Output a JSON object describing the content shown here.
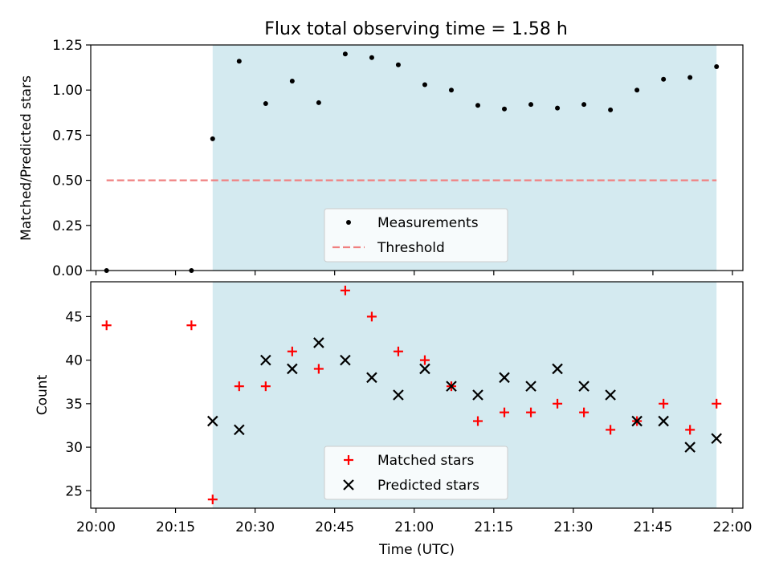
{
  "chart_data": [
    {
      "type": "scatter",
      "title": "Flux total observing time = 1.58 h",
      "xlabel": "",
      "ylabel": "Matched/Predicted stars",
      "ylim": [
        0,
        1.25
      ],
      "yticks": [
        "0.00",
        "0.25",
        "0.50",
        "0.75",
        "1.00",
        "1.25"
      ],
      "x_tick_labels_shown": false,
      "shaded_interval": {
        "start": "20:22",
        "end": "21:57",
        "color": "#d4eaf0"
      },
      "legend_position": "lower center",
      "series": [
        {
          "name": "Measurements",
          "marker": "dot",
          "color": "#000000",
          "x": [
            "20:02",
            "20:18",
            "20:22",
            "20:27",
            "20:32",
            "20:37",
            "20:42",
            "20:47",
            "20:52",
            "20:57",
            "21:02",
            "21:07",
            "21:12",
            "21:17",
            "21:22",
            "21:27",
            "21:32",
            "21:37",
            "21:42",
            "21:47",
            "21:52",
            "21:57"
          ],
          "y": [
            0.0,
            0.0,
            0.73,
            1.16,
            0.925,
            1.05,
            0.93,
            1.2,
            1.18,
            1.14,
            1.03,
            1.0,
            0.915,
            0.895,
            0.92,
            0.9,
            0.92,
            0.89,
            1.0,
            1.06,
            1.07,
            1.13
          ]
        },
        {
          "name": "Threshold",
          "marker": "dashed-line",
          "color": "#f08080",
          "x": [
            "20:02",
            "21:57"
          ],
          "y": [
            0.5,
            0.5
          ]
        }
      ]
    },
    {
      "type": "scatter",
      "title": "",
      "xlabel": "Time (UTC)",
      "ylabel": "Count",
      "ylim": [
        23,
        49
      ],
      "yticks": [
        "25",
        "30",
        "35",
        "40",
        "45"
      ],
      "xticks": [
        "20:00",
        "20:15",
        "20:30",
        "20:45",
        "21:00",
        "21:15",
        "21:30",
        "21:45",
        "22:00"
      ],
      "shaded_interval": {
        "start": "20:22",
        "end": "21:57",
        "color": "#d4eaf0"
      },
      "legend_position": "lower center",
      "series": [
        {
          "name": "Matched stars",
          "marker": "plus",
          "color": "#ff0000",
          "x": [
            "20:02",
            "20:18",
            "20:22",
            "20:27",
            "20:32",
            "20:37",
            "20:42",
            "20:47",
            "20:52",
            "20:57",
            "21:02",
            "21:07",
            "21:12",
            "21:17",
            "21:22",
            "21:27",
            "21:32",
            "21:37",
            "21:42",
            "21:47",
            "21:52",
            "21:57"
          ],
          "y": [
            44,
            44,
            24,
            37,
            37,
            41,
            39,
            48,
            45,
            41,
            40,
            37,
            33,
            34,
            34,
            35,
            34,
            32,
            33,
            35,
            32,
            35
          ]
        },
        {
          "name": "Predicted stars",
          "marker": "x",
          "color": "#000000",
          "x": [
            "20:22",
            "20:27",
            "20:32",
            "20:37",
            "20:42",
            "20:47",
            "20:52",
            "20:57",
            "21:02",
            "21:07",
            "21:12",
            "21:17",
            "21:22",
            "21:27",
            "21:32",
            "21:37",
            "21:42",
            "21:47",
            "21:52",
            "21:57"
          ],
          "y": [
            33,
            32,
            40,
            39,
            42,
            40,
            38,
            36,
            39,
            37,
            36,
            38,
            37,
            39,
            37,
            36,
            33,
            33,
            30,
            31
          ]
        }
      ]
    }
  ]
}
